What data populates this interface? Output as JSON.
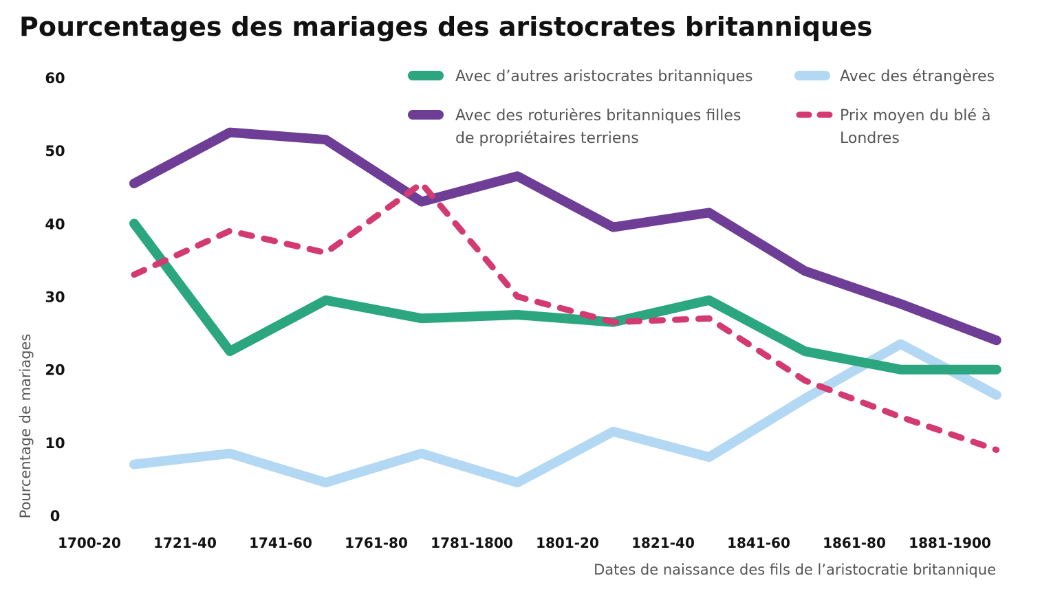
{
  "chart_data": {
    "type": "line",
    "title": "Pourcentages des mariages des aristocrates britanniques",
    "xlabel": "Dates de naissance des fils de l’aristocratie britannique",
    "ylabel": "Pourcentage de mariages",
    "categories": [
      "1700-20",
      "1721-40",
      "1741-60",
      "1761-80",
      "1781-1800",
      "1801-20",
      "1821-40",
      "1841-60",
      "1861-80",
      "1881-1900"
    ],
    "ylim": [
      0,
      60
    ],
    "yticks": [
      "60",
      "50",
      "40",
      "30",
      "20",
      "10",
      "0"
    ],
    "grid": false,
    "legend_position": "top-right",
    "series": [
      {
        "name": "Avec d’autres aristocrates britanniques",
        "color": "#2BA67E",
        "style": "solid",
        "x": [
          1,
          2,
          3,
          4,
          5,
          6,
          7,
          8,
          9,
          10
        ],
        "values": [
          40,
          22.5,
          29.5,
          27,
          27.5,
          26.5,
          29.5,
          22.5,
          20,
          20
        ]
      },
      {
        "name": "Avec des roturières britanniques filles de propriétaires terriens",
        "color": "#6E3D96",
        "style": "solid",
        "x": [
          1,
          2,
          3,
          4,
          5,
          6,
          7,
          8,
          9,
          10
        ],
        "values": [
          45.5,
          52.5,
          51.5,
          43,
          46.5,
          39.5,
          41.5,
          33.5,
          29,
          24
        ]
      },
      {
        "name": "Avec des étrangères",
        "color": "#B2D8F3",
        "style": "solid",
        "x": [
          1,
          2,
          3,
          4,
          5,
          6,
          7,
          8,
          9,
          10
        ],
        "values": [
          7,
          8.5,
          4.5,
          8.5,
          4.5,
          11.5,
          8,
          16,
          23.5,
          16.5
        ]
      },
      {
        "name": "Prix moyen du blé à Londres",
        "color": "#D33A71",
        "style": "dashed",
        "x": [
          1,
          2,
          3,
          4,
          5,
          6,
          7,
          8,
          9,
          10
        ],
        "values": [
          33,
          39,
          36,
          45.5,
          30,
          26.5,
          27,
          18.5,
          13.5,
          9
        ]
      }
    ],
    "legend": [
      {
        "lines": [
          "Avec d’autres aristocrates britanniques"
        ]
      },
      {
        "lines": [
          "Avec des étrangères"
        ]
      },
      {
        "lines": [
          "Avec des roturières britanniques filles",
          "de propriétaires terriens"
        ]
      },
      {
        "lines": [
          "Prix moyen du blé à",
          "Londres"
        ]
      }
    ]
  }
}
